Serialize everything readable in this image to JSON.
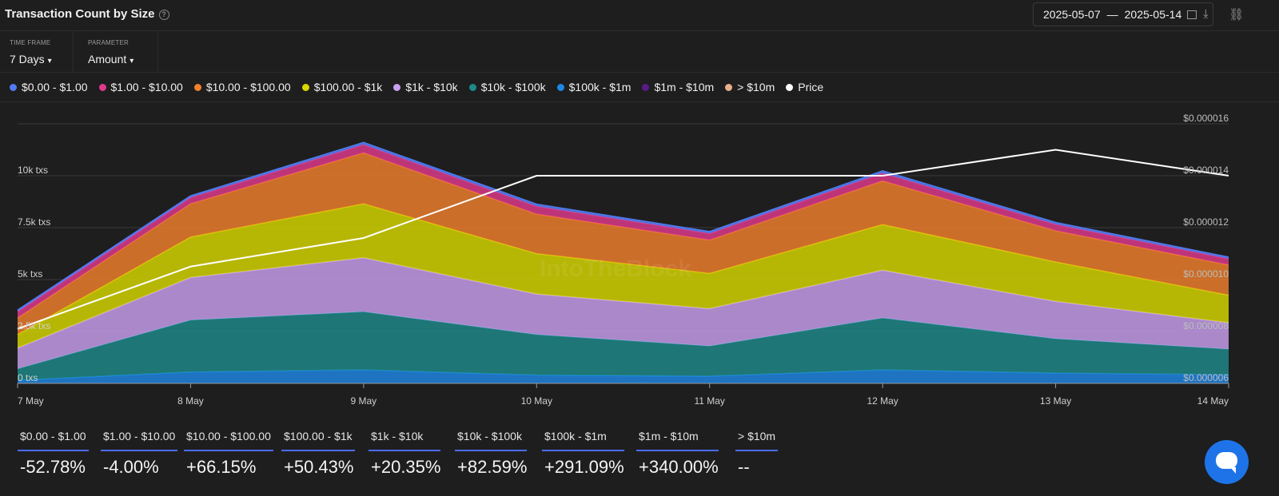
{
  "header": {
    "title": "Transaction Count by Size",
    "date_start": "2025-05-07",
    "date_separator": "—",
    "date_end": "2025-05-14"
  },
  "controls": {
    "time_frame_label": "TIME FRAME",
    "time_frame_value": "7 Days",
    "parameter_label": "PARAMETER",
    "parameter_value": "Amount"
  },
  "legend": [
    {
      "label": "$0.00 - $1.00",
      "color": "#4f7cf0"
    },
    {
      "label": "$1.00 - $10.00",
      "color": "#e03a8c"
    },
    {
      "label": "$10.00 - $100.00",
      "color": "#f0802c"
    },
    {
      "label": "$100.00 - $1k",
      "color": "#d8d800"
    },
    {
      "label": "$1k - $10k",
      "color": "#c9a0f0"
    },
    {
      "label": "$10k - $100k",
      "color": "#1e8a8a"
    },
    {
      "label": "$100k - $1m",
      "color": "#1e88e5"
    },
    {
      "label": "$1m - $10m",
      "color": "#5a1a8a"
    },
    {
      "label": "> $10m",
      "color": "#e8b08a"
    },
    {
      "label": "Price",
      "color": "#ffffff"
    }
  ],
  "chart_data": {
    "type": "area",
    "stacked": true,
    "categories": [
      "7 May",
      "8 May",
      "9 May",
      "10 May",
      "11 May",
      "12 May",
      "13 May",
      "14 May"
    ],
    "left_axis": {
      "label_suffix": " txs",
      "ticks": [
        "0 txs",
        "2.5k txs",
        "5k txs",
        "7.5k txs",
        "10k txs"
      ],
      "range": [
        0,
        12500
      ]
    },
    "right_axis": {
      "ticks": [
        "$0.000006",
        "$0.000008",
        "$0.000010",
        "$0.000012",
        "$0.000014",
        "$0.000016"
      ],
      "range": [
        6e-06,
        1.6e-05
      ]
    },
    "series": [
      {
        "name": "$100k - $1m",
        "color": "#1e88e5",
        "values": [
          150,
          550,
          650,
          400,
          350,
          650,
          500,
          420
        ]
      },
      {
        "name": "$10k - $100k",
        "color": "#1e8a8a",
        "values": [
          550,
          2500,
          2800,
          1950,
          1450,
          2500,
          1650,
          1230
        ]
      },
      {
        "name": "$1k - $10k",
        "color": "#c9a0f0",
        "values": [
          1000,
          2050,
          2600,
          1950,
          1800,
          2300,
          1800,
          1270
        ]
      },
      {
        "name": "$100.00 - $1k",
        "color": "#d8d800",
        "values": [
          650,
          1950,
          2600,
          1950,
          1700,
          2200,
          1900,
          1330
        ]
      },
      {
        "name": "$10.00 - $100.00",
        "color": "#f0802c",
        "values": [
          800,
          1600,
          2450,
          1900,
          1600,
          2100,
          1500,
          1450
        ]
      },
      {
        "name": "$1.00 - $10.00",
        "color": "#e03a8c",
        "values": [
          300,
          300,
          400,
          380,
          320,
          380,
          310,
          300
        ]
      },
      {
        "name": "$0.00 - $1.00",
        "color": "#4f7cf0",
        "values": [
          80,
          80,
          100,
          100,
          90,
          100,
          90,
          80
        ]
      },
      {
        "name": "$1m - $10m",
        "color": "#5a1a8a",
        "values": [
          0,
          0,
          0,
          0,
          0,
          0,
          0,
          0
        ]
      },
      {
        "name": "> $10m",
        "color": "#e8b08a",
        "values": [
          0,
          0,
          0,
          0,
          0,
          0,
          0,
          0
        ]
      }
    ],
    "price": {
      "name": "Price",
      "color": "#ffffff",
      "values": [
        8.1e-06,
        1.05e-05,
        1.16e-05,
        1.4e-05,
        1.4e-05,
        1.4e-05,
        1.5e-05,
        1.4e-05
      ]
    },
    "watermark": "IntoTheBlock"
  },
  "stats": [
    {
      "label": "$0.00 - $1.00",
      "value": "-52.78%"
    },
    {
      "label": "$1.00 - $10.00",
      "value": "-4.00%"
    },
    {
      "label": "$10.00 - $100.00",
      "value": "+66.15%"
    },
    {
      "label": "$100.00 - $1k",
      "value": "+50.43%"
    },
    {
      "label": "$1k - $10k",
      "value": "+20.35%"
    },
    {
      "label": "$10k - $100k",
      "value": "+82.59%"
    },
    {
      "label": "$100k - $1m",
      "value": "+291.09%"
    },
    {
      "label": "$1m - $10m",
      "value": "+340.00%"
    },
    {
      "label": "> $10m",
      "value": "--"
    }
  ]
}
